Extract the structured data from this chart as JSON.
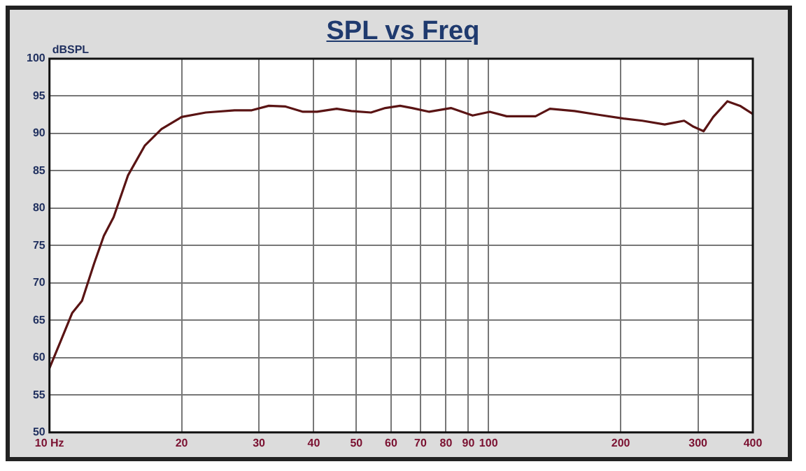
{
  "chart_data": {
    "type": "line",
    "title": "SPL vs Freq",
    "ylabel": "dBSPL",
    "log": "x",
    "x": [
      10,
      10.57,
      11.27,
      11.86,
      12.64,
      13.3,
      14.0,
      15.1,
      16.5,
      18.0,
      20.0,
      22.7,
      26.4,
      28.9,
      31.6,
      34.5,
      37.8,
      40.7,
      45.1,
      48.7,
      54.0,
      58.2,
      62.9,
      67.0,
      73.3,
      82.1,
      92.0,
      100.7,
      110,
      128,
      138,
      157,
      178,
      203,
      224,
      252,
      279,
      293,
      309,
      325,
      350,
      374,
      400
    ],
    "series": [
      {
        "color": "#5a1414",
        "values": [
          58.6,
          62.0,
          66.0,
          67.6,
          72.6,
          76.3,
          78.8,
          84.4,
          88.4,
          90.6,
          92.2,
          92.8,
          93.1,
          93.1,
          93.7,
          93.6,
          92.9,
          92.9,
          93.3,
          93.0,
          92.8,
          93.4,
          93.7,
          93.4,
          92.9,
          93.4,
          92.4,
          92.9,
          92.3,
          92.3,
          93.3,
          93.0,
          92.5,
          92.0,
          91.7,
          91.2,
          91.7,
          90.9,
          90.3,
          92.2,
          94.3,
          93.7,
          92.6
        ]
      }
    ],
    "xlim": [
      10,
      400
    ],
    "xticks": [
      {
        "value": 10,
        "label": "10 Hz"
      },
      20,
      30,
      40,
      50,
      60,
      70,
      80,
      90,
      100,
      200,
      300,
      400
    ],
    "ylim": [
      50,
      100
    ],
    "yticks": [
      50,
      55,
      60,
      65,
      70,
      75,
      80,
      85,
      90,
      95,
      100
    ],
    "grid": true,
    "legend": false,
    "marker": "none",
    "line_style": "solid"
  }
}
